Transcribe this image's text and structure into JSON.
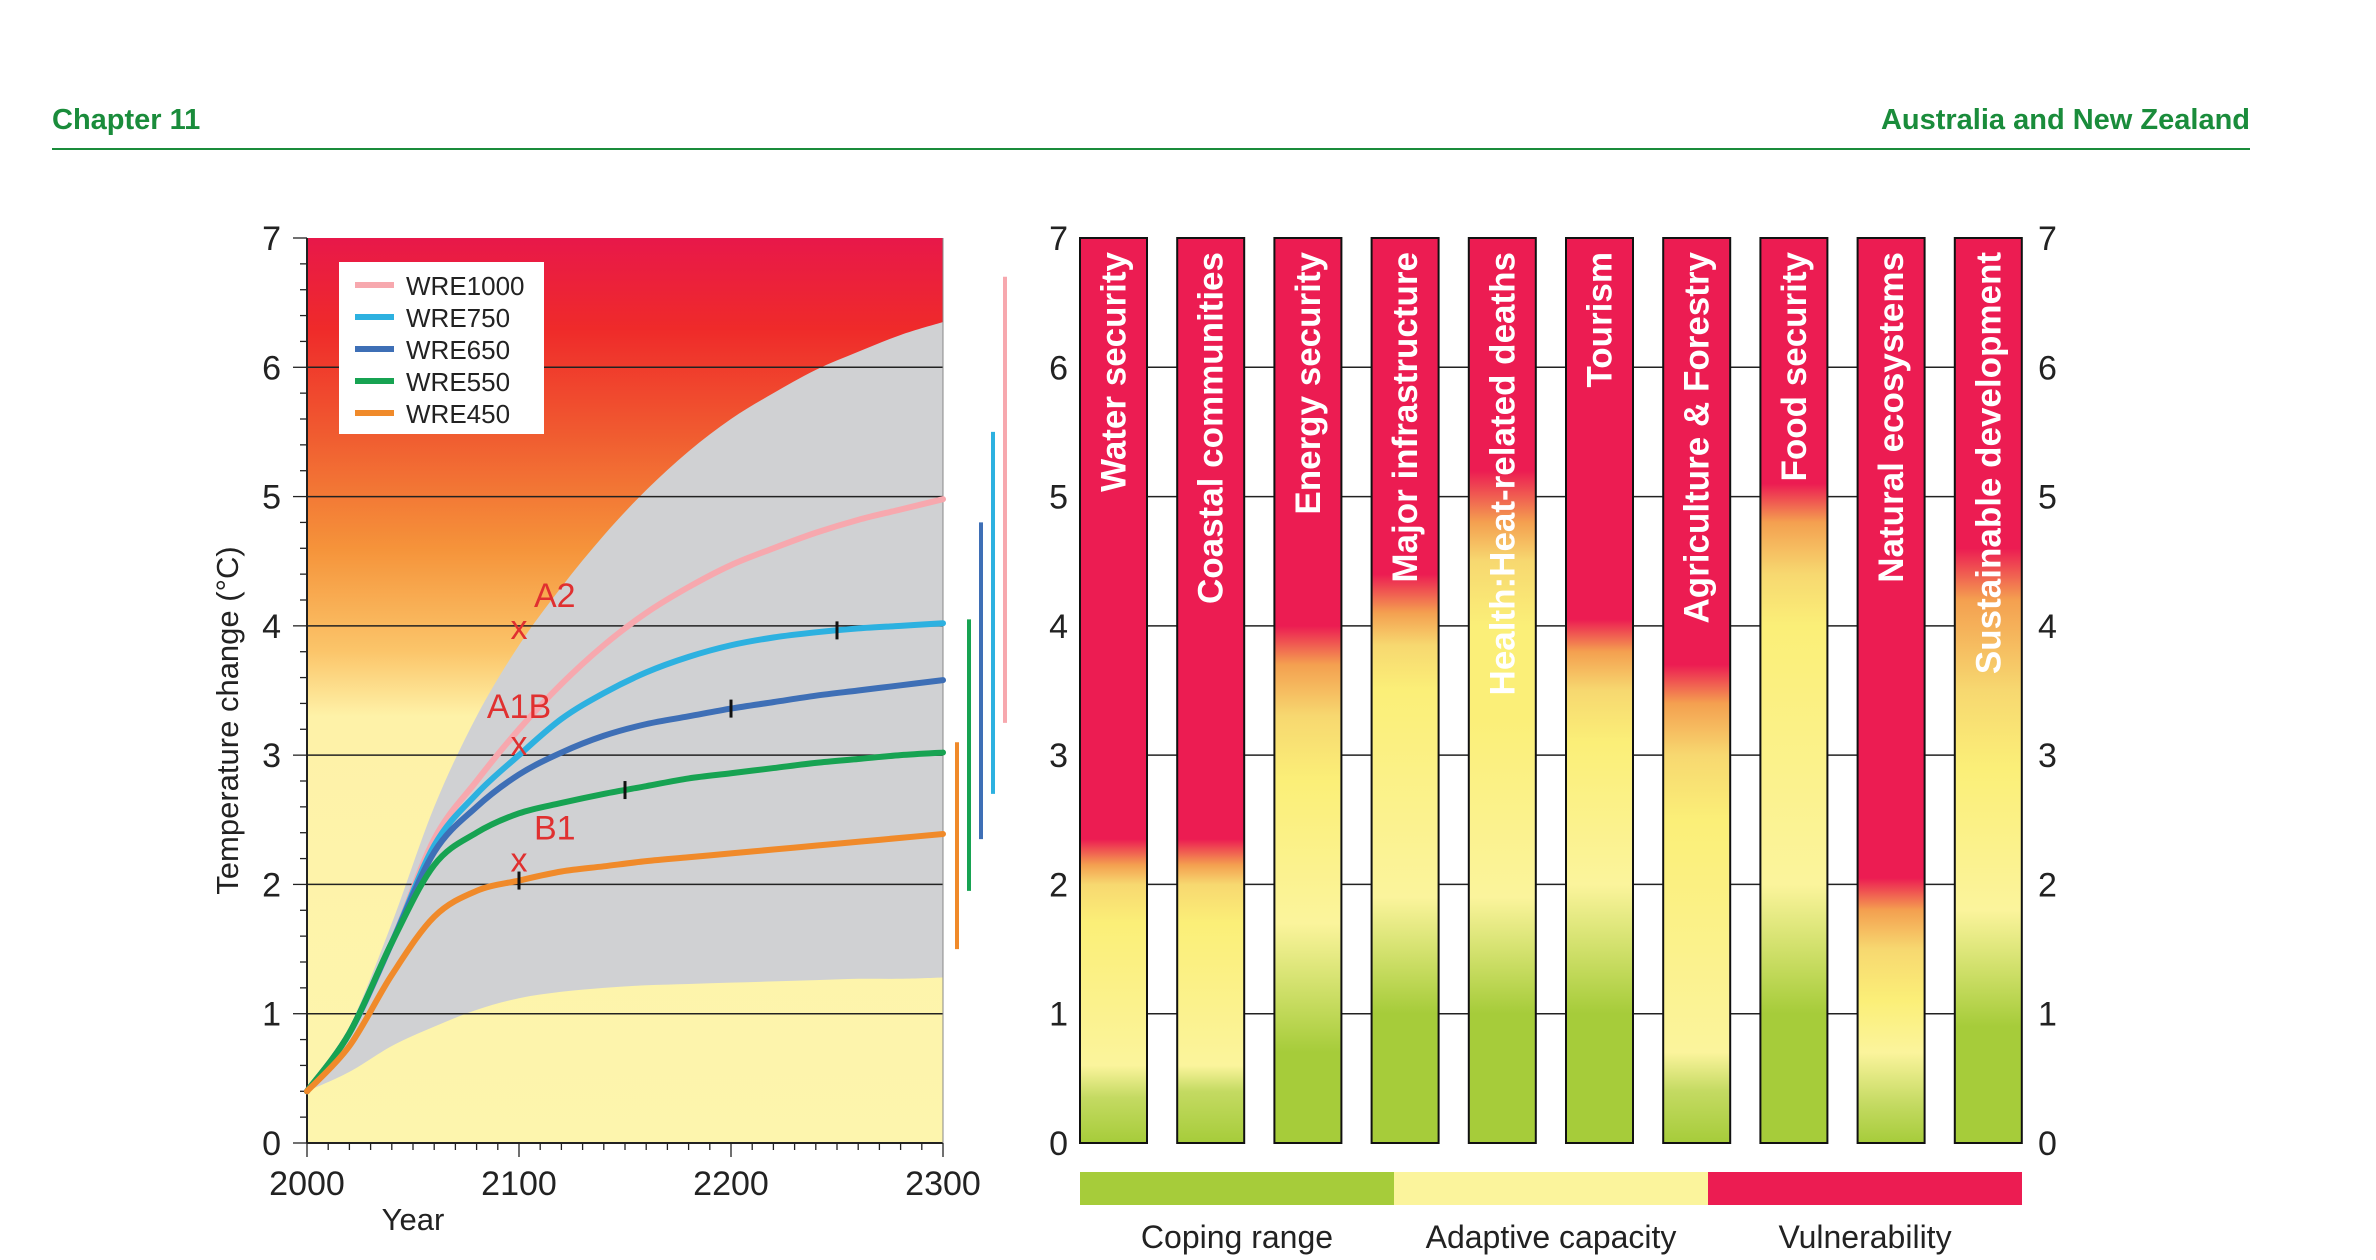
{
  "header": {
    "left": "Chapter 11",
    "right": "Australia and New Zealand"
  },
  "colors": {
    "header_green": "#1a8c3b",
    "coping": "#a6cc3a",
    "adaptive": "#fbf49c",
    "vulnerability": "#ec1c52",
    "uncertainty_band": "#d0d1d3",
    "marker": "#e03030"
  },
  "chart_data": [
    {
      "type": "line",
      "xlabel": "Year",
      "ylabel": "Temperature change (°C)",
      "xlim": [
        2000,
        2300
      ],
      "ylim": [
        0,
        7
      ],
      "xticks": [
        "2000",
        "2100",
        "2200",
        "2300"
      ],
      "yticks": [
        "0",
        "1",
        "2",
        "3",
        "4",
        "5",
        "6",
        "7"
      ],
      "grid": true,
      "legend_position": "top-left",
      "series": [
        {
          "name": "WRE1000",
          "color": "#f7a8ae",
          "x": [
            2000,
            2020,
            2040,
            2060,
            2080,
            2100,
            2120,
            2140,
            2160,
            2180,
            2200,
            2220,
            2240,
            2260,
            2280,
            2300
          ],
          "y": [
            0.4,
            0.85,
            1.55,
            2.35,
            2.8,
            3.2,
            3.55,
            3.85,
            4.1,
            4.3,
            4.47,
            4.6,
            4.72,
            4.82,
            4.9,
            4.98
          ],
          "tick_x": null
        },
        {
          "name": "WRE750",
          "color": "#2db1e0",
          "x": [
            2000,
            2020,
            2040,
            2060,
            2080,
            2100,
            2120,
            2140,
            2160,
            2180,
            2200,
            2220,
            2240,
            2260,
            2280,
            2300
          ],
          "y": [
            0.4,
            0.85,
            1.55,
            2.3,
            2.7,
            3.0,
            3.28,
            3.48,
            3.64,
            3.76,
            3.85,
            3.91,
            3.95,
            3.98,
            4.0,
            4.02
          ],
          "tick_x": 2250
        },
        {
          "name": "WRE650",
          "color": "#3e6fb6",
          "x": [
            2000,
            2020,
            2040,
            2060,
            2080,
            2100,
            2120,
            2140,
            2160,
            2180,
            2200,
            2220,
            2240,
            2260,
            2280,
            2300
          ],
          "y": [
            0.4,
            0.85,
            1.55,
            2.25,
            2.6,
            2.85,
            3.02,
            3.15,
            3.24,
            3.3,
            3.36,
            3.41,
            3.46,
            3.5,
            3.54,
            3.58
          ],
          "tick_x": 2200
        },
        {
          "name": "WRE550",
          "color": "#17a352",
          "x": [
            2000,
            2020,
            2040,
            2060,
            2080,
            2100,
            2120,
            2140,
            2160,
            2180,
            2200,
            2220,
            2240,
            2260,
            2280,
            2300
          ],
          "y": [
            0.4,
            0.85,
            1.55,
            2.15,
            2.4,
            2.55,
            2.63,
            2.7,
            2.76,
            2.82,
            2.86,
            2.9,
            2.94,
            2.97,
            3.0,
            3.02
          ],
          "tick_x": 2150
        },
        {
          "name": "WRE450",
          "color": "#f08a2a",
          "x": [
            2000,
            2020,
            2040,
            2060,
            2080,
            2100,
            2120,
            2140,
            2160,
            2180,
            2200,
            2220,
            2240,
            2260,
            2280,
            2300
          ],
          "y": [
            0.4,
            0.75,
            1.3,
            1.75,
            1.95,
            2.03,
            2.1,
            2.14,
            2.18,
            2.21,
            2.24,
            2.27,
            2.3,
            2.33,
            2.36,
            2.39
          ],
          "tick_x": 2100
        }
      ],
      "uncertainty_band": {
        "x": [
          2000,
          2020,
          2040,
          2060,
          2080,
          2100,
          2120,
          2140,
          2160,
          2180,
          2200,
          2220,
          2240,
          2260,
          2280,
          2300
        ],
        "upper": [
          0.4,
          0.9,
          1.7,
          2.6,
          3.3,
          3.85,
          4.3,
          4.7,
          5.05,
          5.35,
          5.6,
          5.8,
          5.98,
          6.12,
          6.25,
          6.35
        ],
        "lower": [
          0.4,
          0.55,
          0.75,
          0.9,
          1.03,
          1.12,
          1.17,
          1.2,
          1.22,
          1.23,
          1.24,
          1.25,
          1.26,
          1.27,
          1.27,
          1.28
        ]
      },
      "scenario_markers": [
        {
          "label": "A2",
          "x": 2100,
          "y": 4.0
        },
        {
          "label": "A1B",
          "x": 2100,
          "y": 3.1
        },
        {
          "label": "B1",
          "x": 2100,
          "y": 2.2
        }
      ],
      "marker_symbol": "x",
      "range_bars": [
        {
          "series": "WRE450",
          "color": "#f08a2a",
          "low": 1.5,
          "high": 3.1
        },
        {
          "series": "WRE550",
          "color": "#17a352",
          "low": 1.95,
          "high": 4.05
        },
        {
          "series": "WRE650",
          "color": "#3e6fb6",
          "low": 2.35,
          "high": 4.8
        },
        {
          "series": "WRE750",
          "color": "#2db1e0",
          "low": 2.7,
          "high": 5.5
        },
        {
          "series": "WRE1000",
          "color": "#f7a8ae",
          "low": 3.25,
          "high": 6.7
        }
      ],
      "background_gradient": {
        "stops": [
          {
            "y": 7.0,
            "color": "#e8184a"
          },
          {
            "y": 6.3,
            "color": "#ef2a2a"
          },
          {
            "y": 5.5,
            "color": "#f05a30"
          },
          {
            "y": 4.6,
            "color": "#f5933a"
          },
          {
            "y": 3.8,
            "color": "#fbc56a"
          },
          {
            "y": 3.3,
            "color": "#fef2a8"
          },
          {
            "y": 0.0,
            "color": "#fdf5ad"
          }
        ]
      }
    },
    {
      "type": "heatmap",
      "ylim": [
        0,
        7
      ],
      "yticks": [
        "0",
        "1",
        "2",
        "3",
        "4",
        "5",
        "6",
        "7"
      ],
      "categories": [
        "Water security",
        "Coastal communities",
        "Energy security",
        "Major infrastructure",
        "Health:Heat-related deaths",
        "Tourism",
        "Agriculture & Forestry",
        "Food security",
        "Natural ecosystems",
        "Sustainable development"
      ],
      "bars": [
        {
          "stops": [
            [
              0,
              "#a6cc3a"
            ],
            [
              0.35,
              "#c4da62"
            ],
            [
              0.6,
              "#fbf49c"
            ],
            [
              1.7,
              "#fbef78"
            ],
            [
              2.0,
              "#f7d870"
            ],
            [
              2.15,
              "#f4a050"
            ],
            [
              2.35,
              "#ec1c52"
            ],
            [
              7,
              "#ec1c52"
            ]
          ]
        },
        {
          "stops": [
            [
              0,
              "#a6cc3a"
            ],
            [
              0.4,
              "#c4da62"
            ],
            [
              0.6,
              "#fbf49c"
            ],
            [
              1.7,
              "#fbef78"
            ],
            [
              2.0,
              "#f7d870"
            ],
            [
              2.15,
              "#f4a050"
            ],
            [
              2.35,
              "#ec1c52"
            ],
            [
              7,
              "#ec1c52"
            ]
          ]
        },
        {
          "stops": [
            [
              0,
              "#a6cc3a"
            ],
            [
              0.7,
              "#a6cc3a"
            ],
            [
              1.7,
              "#fbf49c"
            ],
            [
              2.8,
              "#fbef78"
            ],
            [
              3.3,
              "#f7d870"
            ],
            [
              3.7,
              "#f4a050"
            ],
            [
              4.0,
              "#ec1c52"
            ],
            [
              7,
              "#ec1c52"
            ]
          ]
        },
        {
          "stops": [
            [
              0,
              "#a6cc3a"
            ],
            [
              1.0,
              "#a6cc3a"
            ],
            [
              1.9,
              "#fbf49c"
            ],
            [
              3.5,
              "#fbef78"
            ],
            [
              3.85,
              "#f7d870"
            ],
            [
              4.1,
              "#f4a050"
            ],
            [
              4.4,
              "#ec1c52"
            ],
            [
              7,
              "#ec1c52"
            ]
          ]
        },
        {
          "stops": [
            [
              0,
              "#a6cc3a"
            ],
            [
              1.0,
              "#a6cc3a"
            ],
            [
              1.9,
              "#fbf49c"
            ],
            [
              3.3,
              "#fbef78"
            ],
            [
              4.0,
              "#fbef78"
            ],
            [
              4.5,
              "#f7d870"
            ],
            [
              4.8,
              "#f4a050"
            ],
            [
              5.2,
              "#ec1c52"
            ],
            [
              7,
              "#ec1c52"
            ]
          ]
        },
        {
          "stops": [
            [
              0,
              "#a6cc3a"
            ],
            [
              1.0,
              "#a6cc3a"
            ],
            [
              2.0,
              "#fbf49c"
            ],
            [
              3.1,
              "#fbef78"
            ],
            [
              3.5,
              "#f7d870"
            ],
            [
              3.8,
              "#f4a050"
            ],
            [
              4.05,
              "#ec1c52"
            ],
            [
              7,
              "#ec1c52"
            ]
          ]
        },
        {
          "stops": [
            [
              0,
              "#a6cc3a"
            ],
            [
              0.4,
              "#c4da62"
            ],
            [
              0.7,
              "#fbf49c"
            ],
            [
              2.5,
              "#fbef78"
            ],
            [
              3.0,
              "#f7d870"
            ],
            [
              3.4,
              "#f4a050"
            ],
            [
              3.7,
              "#ec1c52"
            ],
            [
              7,
              "#ec1c52"
            ]
          ]
        },
        {
          "stops": [
            [
              0,
              "#a6cc3a"
            ],
            [
              1.0,
              "#a6cc3a"
            ],
            [
              2.0,
              "#fbf49c"
            ],
            [
              4.0,
              "#fbef78"
            ],
            [
              4.4,
              "#f7d870"
            ],
            [
              4.8,
              "#f4a050"
            ],
            [
              5.1,
              "#ec1c52"
            ],
            [
              7,
              "#ec1c52"
            ]
          ]
        },
        {
          "stops": [
            [
              0,
              "#a6cc3a"
            ],
            [
              0.3,
              "#c4da62"
            ],
            [
              0.7,
              "#fbf49c"
            ],
            [
              1.1,
              "#fbef78"
            ],
            [
              1.5,
              "#f7d870"
            ],
            [
              1.8,
              "#f4a050"
            ],
            [
              2.05,
              "#ec1c52"
            ],
            [
              7,
              "#ec1c52"
            ]
          ]
        },
        {
          "stops": [
            [
              0,
              "#a6cc3a"
            ],
            [
              0.9,
              "#a6cc3a"
            ],
            [
              1.8,
              "#fbf49c"
            ],
            [
              2.9,
              "#fbef78"
            ],
            [
              3.5,
              "#f7d870"
            ],
            [
              4.2,
              "#f4a050"
            ],
            [
              4.6,
              "#ec1c52"
            ],
            [
              7,
              "#ec1c52"
            ]
          ]
        }
      ],
      "legend": [
        {
          "label": "Coping range",
          "color": "#a6cc3a"
        },
        {
          "label": "Adaptive capacity",
          "color": "#fbf49c"
        },
        {
          "label": "Vulnerability",
          "color": "#ec1c52"
        }
      ]
    }
  ]
}
